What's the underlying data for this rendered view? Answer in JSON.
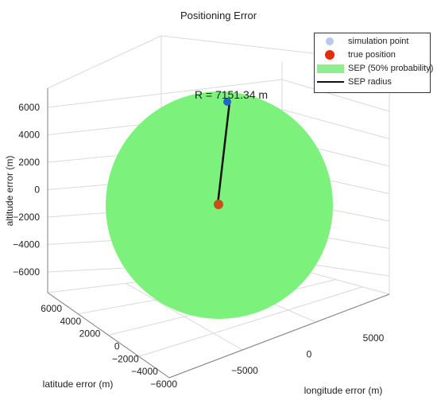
{
  "chart_data": {
    "type": "scatter",
    "title": "Positioning Error",
    "xlabel": "longitude error (m)",
    "ylabel": "latitude error (m)",
    "zlabel": "altitude error (m)",
    "xticks": [
      5000,
      0,
      -5000
    ],
    "yticks": [
      6000,
      4000,
      2000,
      0,
      -2000,
      -4000,
      -6000
    ],
    "zticks": [
      6000,
      4000,
      2000,
      0,
      -2000,
      -4000,
      -6000
    ],
    "xtick_labels": [
      "5000",
      "0",
      "−5000"
    ],
    "ytick_labels": [
      "6000",
      "4000",
      "2000",
      "0",
      "−2000",
      "−4000",
      "−6000"
    ],
    "ztick_labels": [
      "6000",
      "4000",
      "2000",
      "0",
      "−2000",
      "−4000",
      "−6000"
    ],
    "grid": true,
    "legend_position": "top-right",
    "legend": [
      {
        "key": "sim",
        "label": "simulation point"
      },
      {
        "key": "true",
        "label": "true position"
      },
      {
        "key": "sep",
        "label": "SEP (50% probability)"
      },
      {
        "key": "radius",
        "label": "SEP radius"
      }
    ],
    "sep_radius_m": 7151.34,
    "radius_annotation": "R = 7151.34 m",
    "true_position": [
      0,
      0,
      0
    ],
    "simulation_point": [
      0,
      0,
      7151.34
    ],
    "colors": {
      "sphere": "#7CF27C",
      "sphere_light": "#90EE90",
      "simulation_point": "#1F63CC",
      "simulation_point_legend": "#B8C8EE",
      "true_position": "#E62B0B",
      "true_position_3d": "#C8501A",
      "radius_line": "#111111",
      "grid": "#D9D9D9",
      "axis": "#7F7F7F"
    }
  }
}
